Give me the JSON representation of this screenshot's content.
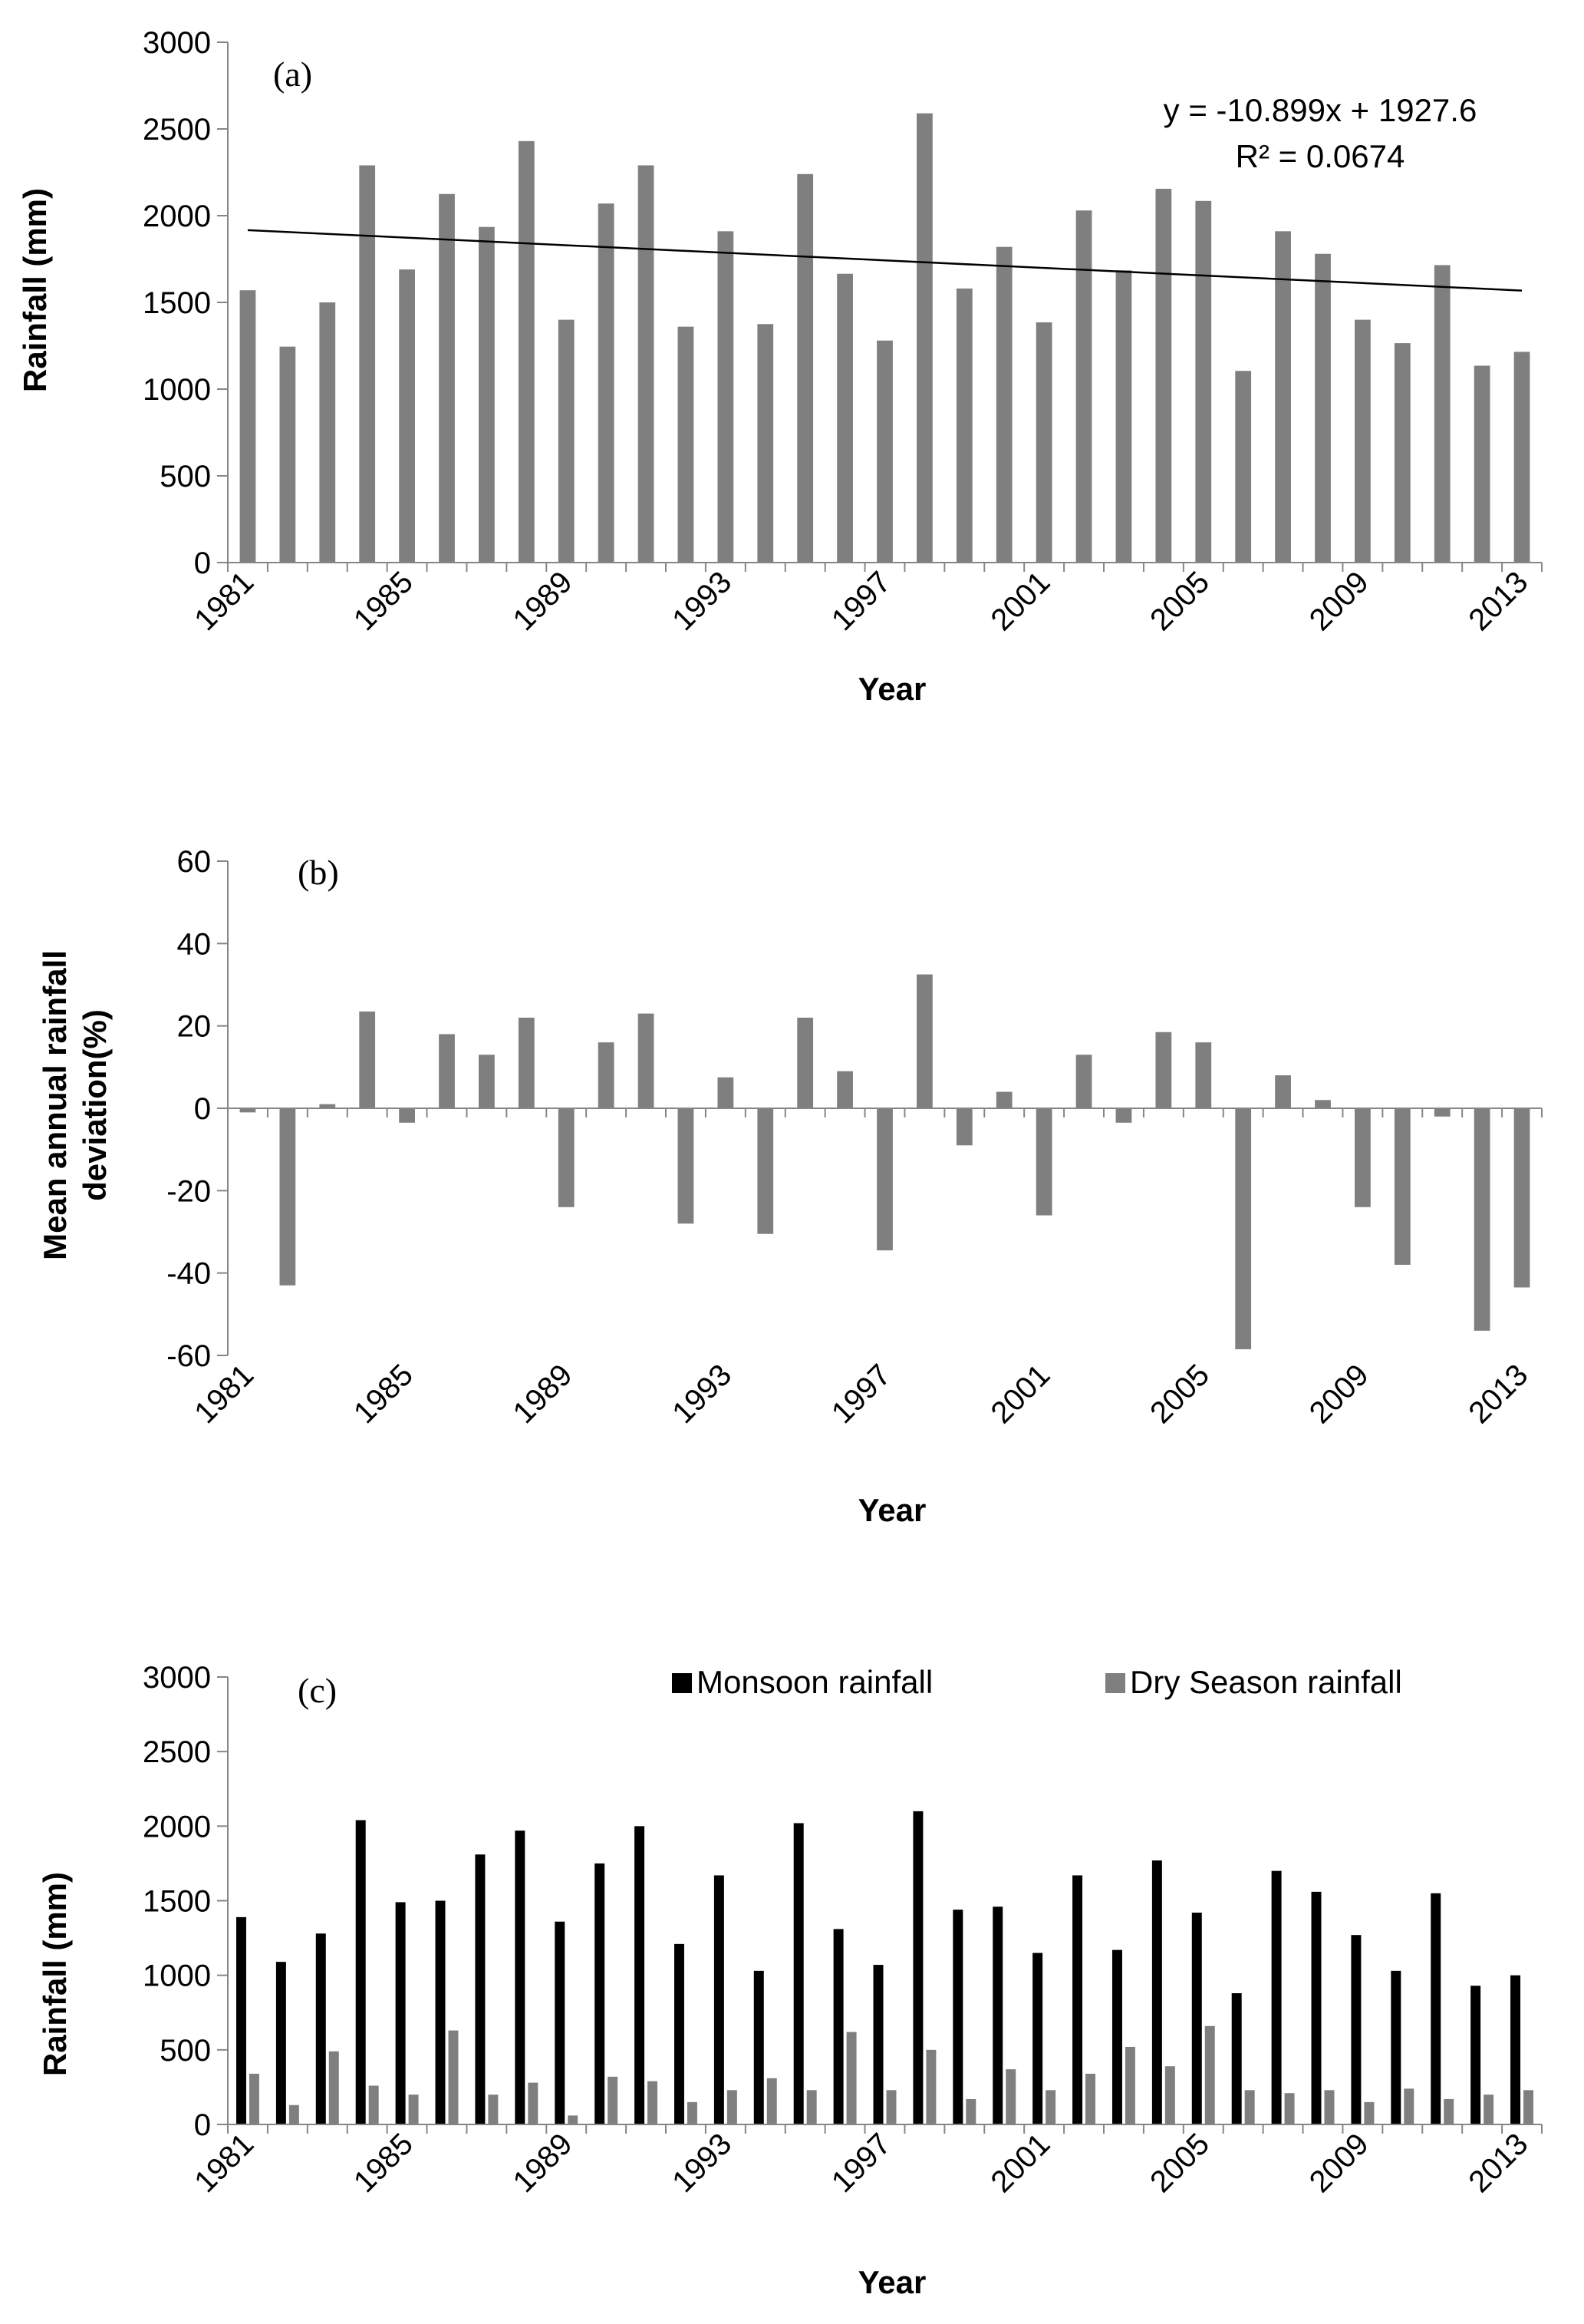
{
  "chart_data": [
    {
      "type": "bar",
      "panel_label": "(a)",
      "xlabel": "Year",
      "ylabel": "Rainfall (mm)",
      "ylim": [
        0,
        3000
      ],
      "yticks": [
        0,
        500,
        1000,
        1500,
        2000,
        2500,
        3000
      ],
      "xtick_labels": [
        "1981",
        "1985",
        "1989",
        "1993",
        "1997",
        "2001",
        "2005",
        "2009",
        "2013"
      ],
      "categories": [
        "1981",
        "1982",
        "1983",
        "1984",
        "1985",
        "1986",
        "1987",
        "1988",
        "1989",
        "1990",
        "1991",
        "1992",
        "1993",
        "1994",
        "1995",
        "1996",
        "1997",
        "1998",
        "1999",
        "2000",
        "2001",
        "2002",
        "2003",
        "2004",
        "2005",
        "2006",
        "2007",
        "2008",
        "2009",
        "2010",
        "2011",
        "2012",
        "2013"
      ],
      "values": [
        1570,
        1245,
        1500,
        2290,
        1690,
        2125,
        1935,
        2430,
        1400,
        2070,
        2290,
        1360,
        1910,
        1375,
        2240,
        1665,
        1280,
        2590,
        1580,
        1820,
        1385,
        2030,
        1685,
        2155,
        2085,
        1105,
        1910,
        1780,
        1400,
        1265,
        1715,
        1135,
        1215
      ],
      "color": "#7f7f7f",
      "trendline": {
        "slope": -10.899,
        "intercept": 1927.6,
        "equation": "y = -10.899x  + 1927.6",
        "r_squared": "R² = 0.0674",
        "color": "#000000"
      }
    },
    {
      "type": "bar",
      "panel_label": "(b)",
      "xlabel": "Year",
      "ylabel_line1": "Mean annual rainfall",
      "ylabel_line2": "deviation(%)",
      "ylim": [
        -60,
        60
      ],
      "yticks": [
        -60,
        -40,
        -20,
        0,
        20,
        40,
        60
      ],
      "xtick_labels": [
        "1981",
        "1985",
        "1989",
        "1993",
        "1997",
        "2001",
        "2005",
        "2009",
        "2013"
      ],
      "categories": [
        "1981",
        "1982",
        "1983",
        "1984",
        "1985",
        "1986",
        "1987",
        "1988",
        "1989",
        "1990",
        "1991",
        "1992",
        "1993",
        "1994",
        "1995",
        "1996",
        "1997",
        "1998",
        "1999",
        "2000",
        "2001",
        "2002",
        "2003",
        "2004",
        "2005",
        "2006",
        "2007",
        "2008",
        "2009",
        "2010",
        "2011",
        "2012",
        "2013"
      ],
      "values": [
        -1,
        -43,
        1,
        23.5,
        -3.5,
        18,
        13,
        22,
        -24,
        16,
        23,
        -28,
        7.5,
        -30.5,
        22,
        9,
        -34.5,
        32.5,
        -9,
        4,
        -26,
        13,
        -3.5,
        18.5,
        16,
        -58.5,
        8,
        2,
        -24,
        -38,
        -2,
        -54,
        -43.5
      ],
      "color": "#7f7f7f"
    },
    {
      "type": "bar",
      "panel_label": "(c)",
      "xlabel": "Year",
      "ylabel": "Rainfall (mm)",
      "ylim": [
        0,
        3000
      ],
      "yticks": [
        0,
        500,
        1000,
        1500,
        2000,
        2500,
        3000
      ],
      "xtick_labels": [
        "1981",
        "1985",
        "1989",
        "1993",
        "1997",
        "2001",
        "2005",
        "2009",
        "2013"
      ],
      "categories": [
        "1981",
        "1982",
        "1983",
        "1984",
        "1985",
        "1986",
        "1987",
        "1988",
        "1989",
        "1990",
        "1991",
        "1992",
        "1993",
        "1994",
        "1995",
        "1996",
        "1997",
        "1998",
        "1999",
        "2000",
        "2001",
        "2002",
        "2003",
        "2004",
        "2005",
        "2006",
        "2007",
        "2008",
        "2009",
        "2010",
        "2011",
        "2012",
        "2013"
      ],
      "legend_position": "top-right",
      "series": [
        {
          "name": "Monsoon rainfall",
          "color": "#000000",
          "values": [
            1390,
            1090,
            1280,
            2040,
            1490,
            1500,
            1810,
            1970,
            1360,
            1750,
            2000,
            1210,
            1670,
            1030,
            2020,
            1310,
            1070,
            2100,
            1440,
            1460,
            1150,
            1670,
            1170,
            1770,
            1420,
            880,
            1700,
            1560,
            1270,
            1030,
            1550,
            930,
            1000
          ]
        },
        {
          "name": "Dry Season rainfall",
          "color": "#7f7f7f",
          "values": [
            340,
            130,
            490,
            260,
            200,
            630,
            200,
            280,
            60,
            320,
            290,
            150,
            230,
            310,
            230,
            620,
            230,
            500,
            170,
            370,
            230,
            340,
            520,
            390,
            660,
            230,
            210,
            230,
            150,
            240,
            170,
            200,
            230
          ]
        }
      ]
    }
  ]
}
